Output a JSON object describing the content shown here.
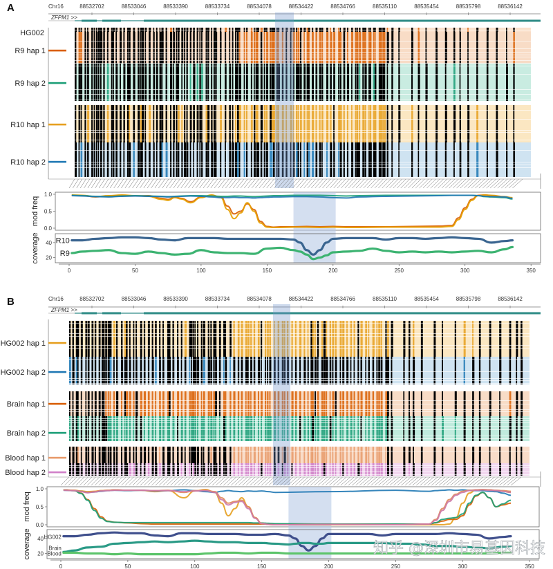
{
  "chart_data": [
    {
      "panel": "A",
      "type": "line",
      "title": "",
      "locus": {
        "chrom_label": "Chr16",
        "ticks": [
          "88532702",
          "88533046",
          "88533390",
          "88533734",
          "88534078",
          "88534422",
          "88534766",
          "88535110",
          "88535454",
          "88535798",
          "88536142"
        ],
        "gene_label": "ZFPM1 >>"
      },
      "tracks": [
        {
          "name": "HG002",
          "color": ""
        },
        {
          "name": "R9 hap 1",
          "color": "#d95f02",
          "bg": "#f8dcc6"
        },
        {
          "name": "R9 hap 2",
          "color": "#1b9e77",
          "bg": "#c9ece1"
        },
        {
          "name": "R10 hap 1",
          "color": "#e6a020",
          "bg": "#fbe7c2"
        },
        {
          "name": "R10 hap 2",
          "color": "#1f78b4",
          "bg": "#cfe3f1"
        }
      ],
      "highlight": {
        "x_range": [
          170,
          202
        ]
      },
      "modfreq": {
        "ylabel": "mod freq",
        "yticks": [
          "1.0",
          "0.5",
          "0.0"
        ],
        "ylim": [
          0,
          1
        ],
        "x": [
          2,
          10,
          20,
          30,
          40,
          50,
          60,
          70,
          75,
          80,
          85,
          92,
          100,
          108,
          115,
          120,
          125,
          130,
          135,
          140,
          145,
          150,
          155,
          160,
          170,
          180,
          190,
          200,
          210,
          220,
          240,
          260,
          280,
          290,
          295,
          300,
          305,
          310,
          315,
          320,
          330,
          336
        ],
        "series": [
          {
            "name": "R9 hap 1",
            "color": "#d95f02",
            "values": [
              0.97,
              0.96,
              0.92,
              0.95,
              0.97,
              0.95,
              0.96,
              0.88,
              0.85,
              0.92,
              0.88,
              0.78,
              0.92,
              0.97,
              0.92,
              0.65,
              0.42,
              0.5,
              0.72,
              0.55,
              0.2,
              0.05,
              0.03,
              0.04,
              0.04,
              0.05,
              0.04,
              0.05,
              0.04,
              0.04,
              0.04,
              0.05,
              0.06,
              0.08,
              0.3,
              0.6,
              0.85,
              0.97,
              0.98,
              0.96,
              0.92,
              0.88
            ]
          },
          {
            "name": "R10 hap 1",
            "color": "#e69f00",
            "values": [
              0.98,
              0.97,
              0.93,
              0.96,
              0.98,
              0.96,
              0.94,
              0.85,
              0.82,
              0.9,
              0.86,
              0.75,
              0.9,
              0.98,
              0.9,
              0.55,
              0.28,
              0.45,
              0.75,
              0.5,
              0.15,
              0.03,
              0.02,
              0.02,
              0.03,
              0.03,
              0.02,
              0.03,
              0.02,
              0.02,
              0.03,
              0.03,
              0.03,
              0.05,
              0.25,
              0.55,
              0.82,
              0.96,
              0.98,
              0.97,
              0.93,
              0.9
            ]
          },
          {
            "name": "R9 hap 2",
            "color": "#1b9e77",
            "values": [
              0.97,
              0.96,
              0.94,
              0.93,
              0.95,
              0.96,
              0.95,
              0.94,
              0.93,
              0.94,
              0.95,
              0.96,
              0.96,
              0.95,
              0.94,
              0.94,
              0.95,
              0.95,
              0.94,
              0.93,
              0.94,
              0.95,
              0.96,
              0.96,
              0.97,
              0.97,
              0.97,
              0.96,
              0.95,
              0.96,
              0.97,
              0.97,
              0.97,
              0.97,
              0.97,
              0.97,
              0.97,
              0.96,
              0.93,
              0.92,
              0.9,
              0.86
            ]
          },
          {
            "name": "R10 hap 2",
            "color": "#1f78b4",
            "values": [
              0.96,
              0.95,
              0.93,
              0.92,
              0.94,
              0.95,
              0.94,
              0.93,
              0.92,
              0.93,
              0.94,
              0.95,
              0.94,
              0.92,
              0.9,
              0.9,
              0.91,
              0.9,
              0.9,
              0.89,
              0.9,
              0.91,
              0.92,
              0.92,
              0.93,
              0.93,
              0.92,
              0.9,
              0.89,
              0.92,
              0.94,
              0.95,
              0.96,
              0.97,
              0.97,
              0.97,
              0.97,
              0.96,
              0.94,
              0.93,
              0.92,
              0.88
            ]
          }
        ]
      },
      "coverage": {
        "ylabel": "coverage",
        "yticks": [
          "40",
          "20"
        ],
        "ylim": [
          15,
          50
        ],
        "x": [
          2,
          10,
          20,
          30,
          40,
          50,
          60,
          70,
          80,
          90,
          100,
          110,
          120,
          130,
          140,
          150,
          160,
          170,
          175,
          180,
          185,
          190,
          195,
          200,
          210,
          220,
          230,
          240,
          250,
          260,
          270,
          280,
          290,
          300,
          310,
          320,
          330,
          336
        ],
        "series": [
          {
            "name": "R10",
            "color": "#3a6590",
            "values": [
              43,
              43,
              45,
              46,
              47,
              47,
              46,
              44,
              43,
              46,
              46,
              46,
              45,
              45,
              45,
              45,
              45,
              44,
              40,
              30,
              24,
              30,
              40,
              45,
              46,
              46,
              46,
              44,
              46,
              46,
              45,
              46,
              47,
              46,
              45,
              40,
              42,
              43
            ]
          },
          {
            "name": "R9",
            "color": "#3cb371",
            "values": [
              26,
              28,
              29,
              30,
              26,
              25,
              28,
              26,
              24,
              25,
              30,
              27,
              26,
              26,
              25,
              32,
              33,
              30,
              28,
              24,
              18,
              20,
              23,
              27,
              28,
              29,
              32,
              29,
              27,
              28,
              27,
              28,
              27,
              28,
              29,
              27,
              31,
              34
            ]
          }
        ],
        "series_labels": [
          "R10",
          "R9"
        ]
      },
      "xticks": [
        "0",
        "50",
        "100",
        "150",
        "200",
        "250",
        "300",
        "350"
      ],
      "xlim": [
        -15,
        352
      ]
    },
    {
      "panel": "B",
      "type": "line",
      "title": "",
      "locus": {
        "chrom_label": "Chr16",
        "ticks": [
          "88532702",
          "88533046",
          "88533390",
          "88533734",
          "88534078",
          "88534422",
          "88534766",
          "88535110",
          "88535454",
          "88535798",
          "88536142"
        ],
        "gene_label": "ZFPM1 >>"
      },
      "tracks": [
        {
          "name": "HG002 hap 1",
          "color": "#e6a020",
          "bg": "#fbe7c2"
        },
        {
          "name": "HG002 hap 2",
          "color": "#1f78b4",
          "bg": "#cfe3f1"
        },
        {
          "name": "Brain hap 1",
          "color": "#d95f02",
          "bg": "#f8dcc6"
        },
        {
          "name": "Brain hap 2",
          "color": "#1b9e77",
          "bg": "#c0ebdd"
        },
        {
          "name": "Blood hap 1",
          "color": "#e89a6a",
          "bg": "#f9dcc8"
        },
        {
          "name": "Blood hap 2",
          "color": "#d080c8",
          "bg": "#f2d6ef"
        }
      ],
      "highlight": {
        "x_range": [
          170,
          202
        ]
      },
      "modfreq": {
        "ylabel": "mod freq",
        "yticks": [
          "1.0",
          "0.5",
          "0.0"
        ],
        "ylim": [
          0,
          1
        ],
        "x": [
          2,
          10,
          15,
          20,
          25,
          30,
          35,
          40,
          50,
          60,
          70,
          80,
          92,
          100,
          108,
          115,
          120,
          125,
          130,
          135,
          140,
          145,
          150,
          155,
          160,
          200,
          250,
          275,
          280,
          285,
          290,
          295,
          300,
          305,
          310,
          315,
          320,
          325,
          330,
          336
        ],
        "series": [
          {
            "name": "HG002 hap 1",
            "color": "#e6a020",
            "values": [
              0.97,
              0.96,
              0.94,
              0.92,
              0.93,
              0.95,
              0.96,
              0.97,
              0.96,
              0.96,
              0.92,
              0.95,
              0.75,
              0.94,
              0.98,
              0.9,
              0.6,
              0.25,
              0.45,
              0.75,
              0.5,
              0.2,
              0.03,
              0.01,
              0.0,
              0.0,
              0.0,
              0.0,
              0.0,
              0.0,
              0.02,
              0.2,
              0.6,
              0.88,
              0.97,
              0.98,
              0.97,
              0.95,
              0.93,
              0.9
            ]
          },
          {
            "name": "HG002 hap 2",
            "color": "#1f78b4",
            "values": [
              0.96,
              0.95,
              0.93,
              0.9,
              0.91,
              0.93,
              0.95,
              0.96,
              0.95,
              0.96,
              0.94,
              0.95,
              0.97,
              0.95,
              0.92,
              0.9,
              0.93,
              0.95,
              0.93,
              0.92,
              0.94,
              0.93,
              0.94,
              0.92,
              0.9,
              0.92,
              0.96,
              0.93,
              0.95,
              0.96,
              0.97,
              0.96,
              0.97,
              0.96,
              0.95,
              0.95,
              0.93,
              0.92,
              0.88,
              0.82
            ]
          },
          {
            "name": "Brain hap 1",
            "color": "#d95f02",
            "values": [
              0.97,
              0.95,
              0.88,
              0.7,
              0.45,
              0.22,
              0.1,
              0.07,
              0.05,
              0.03,
              0.02,
              0.02,
              0.02,
              0.02,
              0.02,
              0.02,
              0.02,
              0.02,
              0.02,
              0.02,
              0.02,
              0.02,
              0.02,
              0.02,
              0.02,
              0.02,
              0.02,
              0.02,
              0.05,
              0.1,
              0.15,
              0.15,
              0.25,
              0.55,
              0.8,
              0.9,
              0.75,
              0.5,
              0.55,
              0.6
            ]
          },
          {
            "name": "Brain hap 2",
            "color": "#1b9e77",
            "values": [
              0.97,
              0.95,
              0.87,
              0.68,
              0.4,
              0.18,
              0.09,
              0.07,
              0.06,
              0.06,
              0.06,
              0.06,
              0.06,
              0.06,
              0.06,
              0.06,
              0.06,
              0.06,
              0.06,
              0.06,
              0.06,
              0.05,
              0.05,
              0.04,
              0.03,
              0.02,
              0.02,
              0.02,
              0.06,
              0.15,
              0.18,
              0.2,
              0.3,
              0.6,
              0.82,
              0.9,
              0.75,
              0.5,
              0.58,
              0.68
            ]
          },
          {
            "name": "Blood hap 1",
            "color": "#e08a5a",
            "values": [
              0.97,
              0.96,
              0.93,
              0.9,
              0.92,
              0.95,
              0.96,
              0.97,
              0.96,
              0.96,
              0.95,
              0.96,
              0.9,
              0.95,
              0.96,
              0.92,
              0.75,
              0.6,
              0.65,
              0.68,
              0.5,
              0.2,
              0.04,
              0.01,
              0.0,
              0.01,
              0.0,
              0.02,
              0.15,
              0.45,
              0.7,
              0.85,
              0.93,
              0.96,
              0.97,
              0.97,
              0.97,
              0.96,
              0.95,
              0.93
            ]
          },
          {
            "name": "Blood hap 2",
            "color": "#cc79a7",
            "values": [
              0.96,
              0.95,
              0.92,
              0.89,
              0.91,
              0.94,
              0.95,
              0.96,
              0.96,
              0.96,
              0.95,
              0.95,
              0.92,
              0.94,
              0.95,
              0.9,
              0.7,
              0.55,
              0.62,
              0.65,
              0.45,
              0.18,
              0.03,
              0.01,
              0.0,
              0.01,
              0.0,
              0.02,
              0.12,
              0.4,
              0.65,
              0.82,
              0.9,
              0.95,
              0.96,
              0.97,
              0.96,
              0.95,
              0.93,
              0.9
            ]
          }
        ]
      },
      "coverage": {
        "ylabel": "coverage",
        "yticks": [
          "40",
          "20"
        ],
        "ylim": [
          15,
          50
        ],
        "x": [
          2,
          10,
          20,
          30,
          40,
          50,
          60,
          70,
          80,
          90,
          100,
          110,
          120,
          130,
          140,
          150,
          160,
          170,
          175,
          180,
          185,
          190,
          195,
          200,
          210,
          220,
          230,
          240,
          250,
          260,
          270,
          280,
          290,
          300,
          310,
          320,
          330,
          336
        ],
        "series": [
          {
            "name": "HG002",
            "color": "#3f4f8c",
            "values": [
              43,
              43,
              45,
              47,
              48,
              47,
              47,
              44,
              43,
              47,
              47,
              46,
              46,
              46,
              45,
              45,
              46,
              44,
              40,
              30,
              24,
              30,
              40,
              46,
              46,
              46,
              46,
              44,
              46,
              46,
              46,
              46,
              47,
              46,
              45,
              40,
              42,
              43
            ]
          },
          {
            "name": "Brain",
            "color": "#2a9a86",
            "values": [
              22,
              24,
              28,
              29,
              33,
              34,
              35,
              36,
              35,
              36,
              37,
              36,
              35,
              35,
              34,
              34,
              33,
              32,
              33,
              34,
              34,
              33,
              33,
              34,
              34,
              34,
              34,
              34,
              33,
              33,
              32,
              30,
              30,
              29,
              28,
              27,
              29,
              30
            ]
          },
          {
            "name": "Blood",
            "color": "#5cc46a",
            "values": [
              21,
              21,
              20,
              20,
              19,
              20,
              19,
              19,
              19,
              19,
              19,
              20,
              21,
              21,
              20,
              21,
              21,
              20,
              20,
              20,
              20,
              20,
              20,
              20,
              20,
              20,
              20,
              20,
              20,
              20,
              20,
              20,
              20,
              20,
              20,
              20,
              21,
              21
            ]
          }
        ],
        "series_labels": [
          "HG002",
          "Brain",
          "Blood"
        ]
      },
      "xticks": [
        "0",
        "50",
        "100",
        "150",
        "200",
        "250",
        "300",
        "350"
      ],
      "xlim": [
        -15,
        352
      ]
    }
  ],
  "panels": {
    "a": {
      "letter": "A"
    },
    "b": {
      "letter": "B"
    }
  },
  "watermark": "知乎 @深圳市易基因科技"
}
